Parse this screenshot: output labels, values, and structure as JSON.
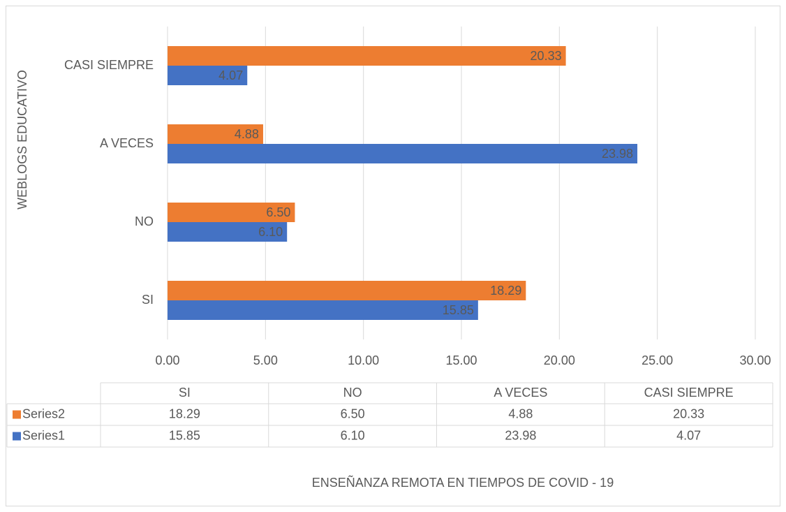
{
  "chart_data": {
    "type": "bar",
    "orientation": "horizontal",
    "x_label": "ENSEÑANZA REMOTA EN TIEMPOS DE COVID - 19",
    "y_label": "WEBLOGS EDUCATIVO",
    "categories": [
      "SI",
      "NO",
      "A VECES",
      "CASI SIEMPRE"
    ],
    "series": [
      {
        "name": "Series1",
        "color": "#4472c4",
        "values": [
          15.85,
          6.1,
          23.98,
          4.07
        ],
        "value_labels": [
          "15.85",
          "6.10",
          "23.98",
          "4.07"
        ]
      },
      {
        "name": "Series2",
        "color": "#ed7d31",
        "values": [
          18.29,
          6.5,
          4.88,
          20.33
        ],
        "value_labels": [
          "18.29",
          "6.50",
          "4.88",
          "20.33"
        ]
      }
    ],
    "xlim": [
      0,
      30
    ],
    "xticks": [
      {
        "value": 0,
        "label": "0.00"
      },
      {
        "value": 5,
        "label": "5.00"
      },
      {
        "value": 10,
        "label": "10.00"
      },
      {
        "value": 15,
        "label": "15.00"
      },
      {
        "value": 20,
        "label": "20.00"
      },
      {
        "value": 25,
        "label": "25.00"
      },
      {
        "value": 30,
        "label": "30.00"
      }
    ],
    "grid": true,
    "data_table": true
  }
}
